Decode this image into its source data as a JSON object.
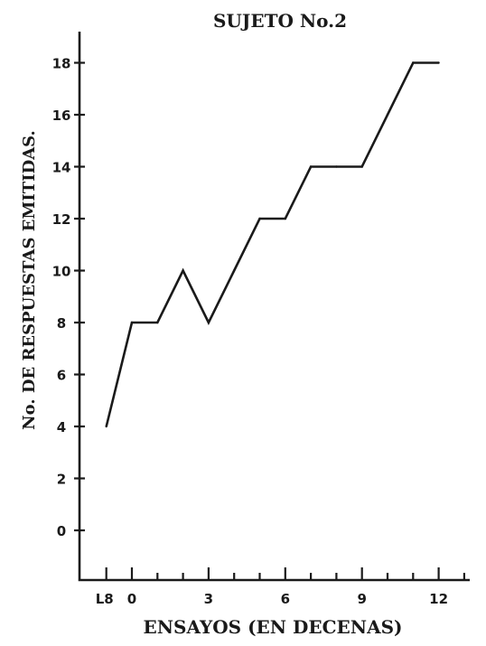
{
  "chart_data": {
    "type": "line",
    "title": "SUJETO No.2",
    "xlabel": "ENSAYOS (EN DECENAS)",
    "ylabel": "No. DE RESPUESTAS EMITIDAS.",
    "x_tick_labels": [
      "L8",
      "0",
      "3",
      "6",
      "9",
      "12"
    ],
    "y_tick_labels": [
      "0",
      "2",
      "4",
      "6",
      "8",
      "10",
      "12",
      "14",
      "16",
      "18"
    ],
    "ylim": [
      -1.5,
      19
    ],
    "grid": false,
    "legend": "none",
    "series": [
      {
        "x": [
          -1,
          0,
          1,
          2,
          3,
          4,
          5,
          6,
          7,
          8,
          9,
          10,
          11,
          12
        ],
        "values": [
          4,
          8,
          8,
          10,
          8,
          10,
          12,
          12,
          14,
          14,
          14,
          16,
          18,
          18
        ]
      }
    ],
    "colors": {
      "ink": "#1a1a1a",
      "background": "#ffffff"
    }
  }
}
